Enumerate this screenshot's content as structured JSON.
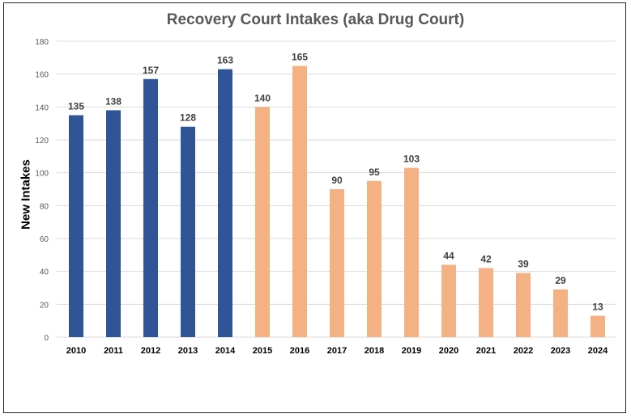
{
  "chart_data": {
    "type": "bar",
    "title": "Recovery Court Intakes (aka Drug Court)",
    "xlabel": "",
    "ylabel": "New Intakes",
    "ylim": [
      0,
      180
    ],
    "yticks": [
      0,
      20,
      40,
      60,
      80,
      100,
      120,
      140,
      160,
      180
    ],
    "grid": true,
    "categories": [
      "2010",
      "2011",
      "2012",
      "2013",
      "2014",
      "2015",
      "2016",
      "2017",
      "2018",
      "2019",
      "2020",
      "2021",
      "2022",
      "2023",
      "2024"
    ],
    "values": [
      135,
      138,
      157,
      128,
      163,
      140,
      165,
      90,
      95,
      103,
      44,
      42,
      39,
      29,
      13
    ],
    "colors": [
      "#2F5597",
      "#2F5597",
      "#2F5597",
      "#2F5597",
      "#2F5597",
      "#F4B183",
      "#F4B183",
      "#F4B183",
      "#F4B183",
      "#F4B183",
      "#F4B183",
      "#F4B183",
      "#F4B183",
      "#F4B183",
      "#F4B183"
    ],
    "data_labels": true
  }
}
